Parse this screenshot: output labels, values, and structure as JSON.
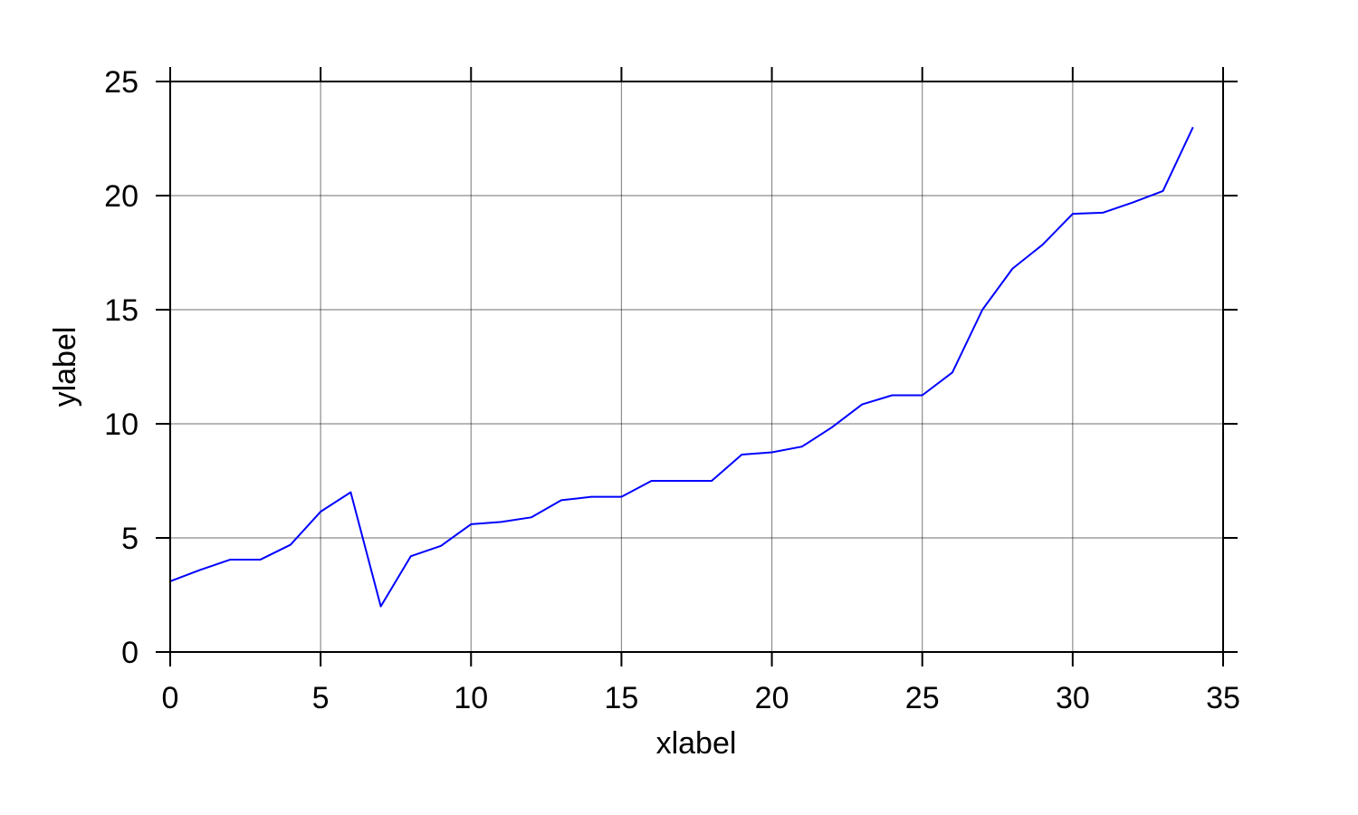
{
  "chart_data": {
    "type": "line",
    "title": "",
    "xlabel": "xlabel",
    "ylabel": "ylabel",
    "xlim": [
      0,
      35
    ],
    "ylim": [
      0,
      25
    ],
    "xticks": [
      0,
      5,
      10,
      15,
      20,
      25,
      30,
      35
    ],
    "yticks": [
      0,
      5,
      10,
      15,
      20,
      25
    ],
    "xtick_labels": [
      "0",
      "5",
      "10",
      "15",
      "20",
      "25",
      "30",
      "35"
    ],
    "ytick_labels": [
      "0",
      "5",
      "10",
      "15",
      "20",
      "25"
    ],
    "grid": true,
    "legend": "none",
    "series": [
      {
        "color": "#0000ff",
        "x": [
          0,
          1,
          2,
          3,
          4,
          5,
          6,
          7,
          8,
          9,
          10,
          11,
          12,
          13,
          14,
          15,
          16,
          17,
          18,
          19,
          20,
          21,
          22,
          23,
          24,
          25,
          26,
          27,
          28,
          29,
          30,
          31,
          32,
          33,
          34
        ],
        "y": [
          3.1,
          3.6,
          4.05,
          4.05,
          4.7,
          6.15,
          7.0,
          2.0,
          4.2,
          4.65,
          5.6,
          5.7,
          5.9,
          6.65,
          6.8,
          6.8,
          7.5,
          7.5,
          7.5,
          8.65,
          8.75,
          9.0,
          9.85,
          10.85,
          11.25,
          11.25,
          12.25,
          15.0,
          16.8,
          17.85,
          19.2,
          19.25,
          19.7,
          20.2,
          23.0
        ]
      }
    ]
  }
}
